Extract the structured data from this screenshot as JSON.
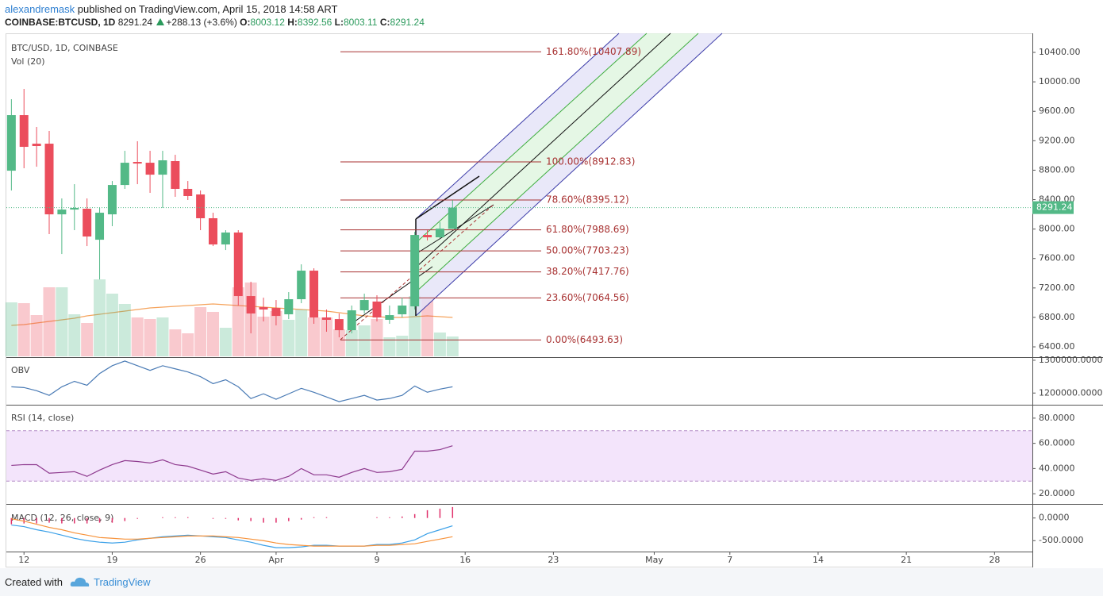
{
  "header": {
    "author": "alexandremask",
    "published": "published on TradingView.com, April 15, 2018 14:58 ART",
    "symbol": "COINBASE:BTCUSD, 1D",
    "change": "+288.13 (+3.6%)",
    "open_label": "O:",
    "high_label": "H:",
    "low_label": "L:",
    "close_label": "C:"
  },
  "footer": {
    "created": "Created with",
    "brand": "TradingView"
  },
  "chart_data": [
    {
      "type": "candlestick",
      "title": "BTC/USD, 1D, COINBASE",
      "up_color": "#53b987",
      "down_color": "#eb4d5c",
      "xlim": [
        -0.4,
        81
      ],
      "xticks": [
        {
          "value": 1,
          "label": "12"
        },
        {
          "value": 8,
          "label": "19"
        },
        {
          "value": 15,
          "label": "26"
        },
        {
          "value": 21,
          "label": "Apr"
        },
        {
          "value": 29,
          "label": "9"
        },
        {
          "value": 36,
          "label": "16"
        },
        {
          "value": 43,
          "label": "23"
        },
        {
          "value": 51,
          "label": "May"
        },
        {
          "value": 57,
          "label": "7"
        },
        {
          "value": 64,
          "label": "14"
        },
        {
          "value": 71,
          "label": "21"
        },
        {
          "value": 78,
          "label": "28"
        }
      ],
      "ylim": [
        6271,
        10659
      ],
      "yticks": [
        {
          "value": 6400,
          "label": "6400.00"
        },
        {
          "value": 6800,
          "label": "6800.00"
        },
        {
          "value": 7200,
          "label": "7200.00"
        },
        {
          "value": 7600,
          "label": "7600.00"
        },
        {
          "value": 8000,
          "label": "8000.00"
        },
        {
          "value": 8400,
          "label": "8400.00"
        },
        {
          "value": 8800,
          "label": "8800.00"
        },
        {
          "value": 9200,
          "label": "9200.00"
        },
        {
          "value": 9600,
          "label": "9600.00"
        },
        {
          "value": 10000,
          "label": "10000.00"
        },
        {
          "value": 10400,
          "label": "10400.00"
        }
      ],
      "candles": {
        "open": [
          8793,
          9548,
          9160,
          9160,
          8200,
          8265,
          8276,
          7855,
          8200,
          8599,
          8912,
          8901,
          8739,
          8923,
          8546,
          8470,
          8147,
          7791,
          7953,
          7090,
          6939,
          6928,
          6842,
          7047,
          7435,
          6799,
          6777,
          6626,
          6896,
          7015,
          6767,
          6842,
          6950,
          7920,
          7888,
          8003.12
        ],
        "high": [
          9764,
          9904,
          9387,
          9333,
          8416,
          8610,
          8416,
          8287,
          8653,
          9063,
          9193,
          9063,
          9063,
          9009,
          8653,
          8524,
          8222,
          7985,
          7985,
          7284,
          7068,
          7036,
          7144,
          7521,
          7467,
          6907,
          6853,
          6961,
          7122,
          7101,
          6961,
          7068,
          7963,
          7985,
          8093,
          8392.56
        ],
        "low": [
          8524,
          8826,
          8847,
          7931,
          7661,
          7985,
          7769,
          7316,
          8039,
          8546,
          8610,
          8492,
          8287,
          8438,
          8395,
          7985,
          7769,
          7715,
          6961,
          6583,
          6745,
          6691,
          6777,
          6993,
          6713,
          6605,
          6529,
          6583,
          6853,
          6745,
          6713,
          6799,
          6907,
          7845,
          7877,
          8003.11
        ],
        "close": [
          9548,
          9117,
          9128,
          8200,
          8265,
          8287,
          7899,
          8222,
          8599,
          8901,
          8890,
          8739,
          8934,
          8546,
          8449,
          8147,
          7791,
          7953,
          7090,
          6853,
          6907,
          6820,
          7047,
          7435,
          6799,
          6767,
          6626,
          6896,
          7036,
          6799,
          6831,
          6961,
          7920,
          7888,
          8006,
          8291.24
        ]
      },
      "volume": {
        "name": "Vol (20)",
        "ma_color": "#f5a35c",
        "values": [
          68,
          67,
          52,
          87,
          87,
          53,
          42,
          97,
          79,
          66,
          49,
          47,
          49,
          34,
          29,
          62,
          56,
          36,
          87,
          93,
          50,
          57,
          46,
          59,
          49,
          49,
          34,
          33,
          39,
          47,
          24,
          26,
          76,
          72,
          30,
          25
        ],
        "ma": [
          39,
          40,
          42,
          44,
          46,
          48,
          51,
          53,
          55,
          57,
          59,
          61,
          62,
          63,
          64,
          65,
          66,
          65,
          64,
          63,
          62,
          61,
          60,
          59,
          58,
          57,
          55,
          53,
          51,
          50,
          49,
          49,
          50,
          51,
          50,
          49
        ]
      },
      "fib_color": "#a83232",
      "fib_levels": [
        {
          "label": "161.80%(10407.89)",
          "value": 10407.89
        },
        {
          "label": "100.00%(8912.83)",
          "value": 8912.83
        },
        {
          "label": "78.60%(8395.12)",
          "value": 8395.12
        },
        {
          "label": "61.80%(7988.69)",
          "value": 7988.69
        },
        {
          "label": "50.00%(7703.23)",
          "value": 7703.23
        },
        {
          "label": "38.20%(7417.76)",
          "value": 7417.76
        },
        {
          "label": "23.60%(7064.56)",
          "value": 7064.56
        },
        {
          "label": "0.00%(6493.63)",
          "value": 6493.63
        }
      ]
    },
    {
      "type": "line",
      "title": "OBV",
      "color": "#4a7bb5",
      "ylim": [
        1164300,
        1307100
      ],
      "yticks": [
        {
          "value": 1300000,
          "label": "1300000.0000"
        },
        {
          "value": 1200000,
          "label": "1200000.0000"
        }
      ],
      "values": [
        1219000,
        1216700,
        1207100,
        1192900,
        1219000,
        1235700,
        1223800,
        1259500,
        1283300,
        1297600,
        1283300,
        1269000,
        1283300,
        1273800,
        1264300,
        1250000,
        1228600,
        1240500,
        1219000,
        1183300,
        1197600,
        1181000,
        1197600,
        1214300,
        1202400,
        1188100,
        1173800,
        1183300,
        1192900,
        1178600,
        1183300,
        1192900,
        1221400,
        1202400,
        1211900,
        1219000
      ]
    },
    {
      "type": "line",
      "title": "RSI (14, close)",
      "color": "#8e3a8e",
      "band": [
        30,
        70
      ],
      "band_color": "#f3e4fb",
      "ylim": [
        11.9,
        90
      ],
      "yticks": [
        {
          "value": 80,
          "label": "80.0000"
        },
        {
          "value": 60,
          "label": "60.0000"
        },
        {
          "value": 40,
          "label": "40.0000"
        },
        {
          "value": 20,
          "label": "20.0000"
        }
      ],
      "values": [
        42.5,
        43.1,
        43.1,
        36.3,
        36.9,
        37.5,
        33.8,
        38.8,
        43.1,
        46.3,
        45.6,
        44.4,
        46.9,
        43.1,
        41.9,
        38.8,
        35.6,
        37.5,
        32.5,
        30.6,
        31.9,
        30.6,
        33.8,
        40.0,
        35.0,
        35.0,
        33.1,
        36.9,
        40.0,
        36.9,
        37.5,
        39.4,
        53.8,
        53.8,
        55.0,
        58.1
      ]
    },
    {
      "type": "macd",
      "title": "MACD (12, 26, close, 9)",
      "ylim": [
        -741,
        293
      ],
      "yticks": [
        {
          "value": 0,
          "label": "0.0000"
        },
        {
          "value": -500,
          "label": "-500.0000"
        }
      ],
      "series": [
        {
          "color": "#3aa0e8",
          "values": [
            -155,
            -190,
            -259,
            -310,
            -379,
            -448,
            -500,
            -534,
            -552,
            -534,
            -483,
            -448,
            -414,
            -397,
            -379,
            -397,
            -414,
            -431,
            -483,
            -534,
            -603,
            -655,
            -655,
            -638,
            -603,
            -603,
            -621,
            -621,
            -621,
            -586,
            -586,
            -552,
            -483,
            -345,
            -259,
            -172
          ]
        },
        {
          "color": "#f7923a",
          "values": [
            -17,
            -69,
            -138,
            -207,
            -259,
            -328,
            -379,
            -431,
            -448,
            -466,
            -466,
            -448,
            -431,
            -414,
            -397,
            -397,
            -397,
            -414,
            -431,
            -466,
            -500,
            -552,
            -586,
            -603,
            -621,
            -621,
            -621,
            -621,
            -621,
            -603,
            -603,
            -586,
            -569,
            -517,
            -466,
            -414
          ]
        }
      ],
      "histogram": {
        "color": "#e0306a",
        "values": [
          -138,
          -121,
          -121,
          -103,
          -120,
          -120,
          -121,
          -103,
          -104,
          -68,
          -17,
          0,
          17,
          17,
          18,
          0,
          -17,
          -17,
          -52,
          -68,
          -103,
          -103,
          -69,
          -35,
          18,
          18,
          0,
          0,
          0,
          17,
          17,
          34,
          86,
          172,
          207,
          242
        ]
      }
    }
  ]
}
